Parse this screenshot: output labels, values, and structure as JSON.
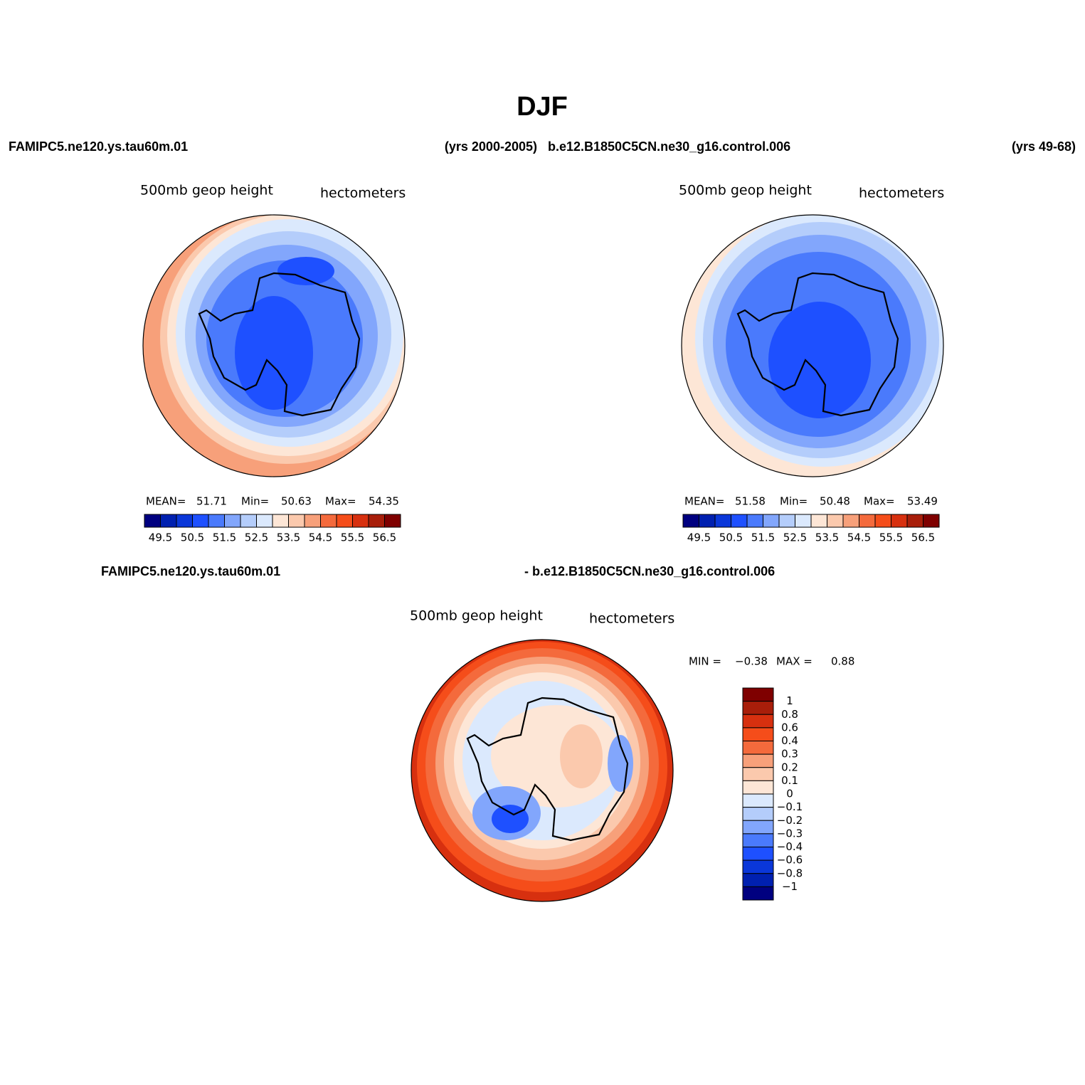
{
  "title": "DJF",
  "header": {
    "left_case": "FAMIPC5.ne120.ys.tau60m.01",
    "left_years": "(yrs 2000-2005)",
    "right_case": "b.e12.B1850C5CN.ne30_g16.control.006",
    "right_years": "(yrs 49-68)"
  },
  "panels": [
    {
      "variable": "500mb  geop  height",
      "units": "hectometers",
      "stats": [
        "MEAN=",
        "51.71",
        "Min=",
        "50.63",
        "Max=",
        "54.35"
      ],
      "colorbar": {
        "colors": [
          "#000080",
          "#0020b0",
          "#0a37d9",
          "#1e50ff",
          "#4a7afc",
          "#82a6fc",
          "#b4cdfb",
          "#dbe9fd",
          "#fde6d6",
          "#fbc9ad",
          "#f7a07a",
          "#f46a3c",
          "#f54d1a",
          "#d7300f",
          "#a81e0a",
          "#7f0000"
        ],
        "labels": [
          "49.5",
          "50.5",
          "51.5",
          "52.5",
          "53.5",
          "54.5",
          "55.5",
          "56.5"
        ]
      }
    },
    {
      "variable": "500mb  geop  height",
      "units": "hectometers",
      "stats": [
        "MEAN=",
        "51.58",
        "Min=",
        "50.48",
        "Max=",
        "53.49"
      ],
      "colorbar": {
        "colors": [
          "#000080",
          "#0020b0",
          "#0a37d9",
          "#1e50ff",
          "#4a7afc",
          "#82a6fc",
          "#b4cdfb",
          "#dbe9fd",
          "#fde6d6",
          "#fbc9ad",
          "#f7a07a",
          "#f46a3c",
          "#f54d1a",
          "#d7300f",
          "#a81e0a",
          "#7f0000"
        ],
        "labels": [
          "49.5",
          "50.5",
          "51.5",
          "52.5",
          "53.5",
          "54.5",
          "55.5",
          "56.5"
        ]
      }
    }
  ],
  "difference": {
    "case_a": "FAMIPC5.ne120.ys.tau60m.01",
    "case_b": "- b.e12.B1850C5CN.ne30_g16.control.006",
    "variable": "500mb  geop  height",
    "units": "hectometers",
    "stats": [
      "MIN =",
      "−0.38",
      "MAX =",
      "0.88"
    ],
    "colorbar": {
      "colors": [
        "#7f0000",
        "#a81e0a",
        "#d7300f",
        "#f54d1a",
        "#f46a3c",
        "#f7a07a",
        "#fbc9ad",
        "#fde6d6",
        "#dbe9fd",
        "#b4cdfb",
        "#82a6fc",
        "#4a7afc",
        "#1e50ff",
        "#0a37d9",
        "#0020b0",
        "#000080"
      ],
      "labels": [
        "1",
        "0.8",
        "0.6",
        "0.4",
        "0.3",
        "0.2",
        "0.1",
        "0",
        "−0.1",
        "−0.2",
        "−0.3",
        "−0.4",
        "−0.6",
        "−0.8",
        "−1"
      ]
    }
  }
}
